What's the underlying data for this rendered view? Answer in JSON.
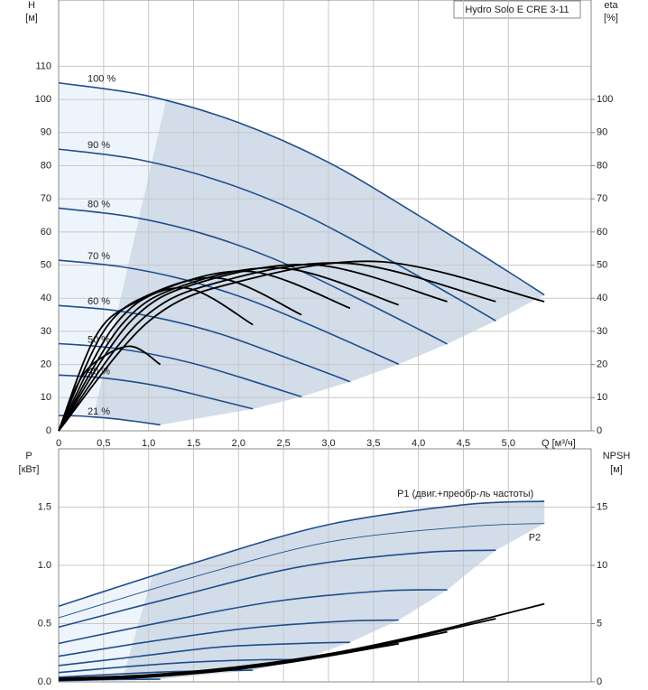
{
  "chart_data": [
    {
      "type": "line",
      "title": "Hydro Solo E CRE 3-11",
      "x_label": "Q [м³/ч]",
      "y_label": "H",
      "y_unit": "[м]",
      "y2_label": "eta",
      "y2_unit": "[%]",
      "xlim": [
        0,
        5.92
      ],
      "ylim": [
        0,
        130
      ],
      "y2lim": [
        0,
        130
      ],
      "xticks": [
        0,
        {
          "value": 0.5,
          "label": "0,5"
        },
        {
          "value": 1,
          "label": "1,0"
        },
        {
          "value": 1.5,
          "label": "1,5"
        },
        {
          "value": 2,
          "label": "2,0"
        },
        {
          "value": 2.5,
          "label": "2,5"
        },
        {
          "value": 3,
          "label": "3,0"
        },
        {
          "value": 3.5,
          "label": "3,5"
        },
        {
          "value": 4,
          "label": "4,0"
        },
        {
          "value": 4.5,
          "label": "4,5"
        },
        {
          "value": 5,
          "label": "5,0"
        }
      ],
      "yticks": [
        0,
        10,
        20,
        30,
        40,
        50,
        60,
        70,
        80,
        90,
        100,
        110
      ],
      "y2ticks": [
        0,
        10,
        20,
        30,
        40,
        50,
        60,
        70,
        80,
        90,
        100
      ],
      "grid": true,
      "series": [
        {
          "name": "100 %",
          "color": "#1f4e8c",
          "x": [
            0,
            1,
            2,
            3,
            4,
            5,
            5.4
          ],
          "values": [
            105,
            101,
            93,
            81,
            65,
            48,
            41
          ]
        },
        {
          "name": "90 %",
          "color": "#1f4e8c",
          "x": [
            0,
            0.9,
            1.8,
            2.7,
            3.6,
            4.5,
            4.86
          ],
          "values": [
            85,
            81.8,
            75.3,
            65.6,
            52.7,
            38.9,
            33.2
          ]
        },
        {
          "name": "80 %",
          "color": "#1f4e8c",
          "x": [
            0,
            0.8,
            1.6,
            2.4,
            3.2,
            4.0,
            4.32
          ],
          "values": [
            67.2,
            64.6,
            59.5,
            51.8,
            41.6,
            30.7,
            26.2
          ]
        },
        {
          "name": "70 %",
          "color": "#1f4e8c",
          "x": [
            0,
            0.7,
            1.4,
            2.1,
            2.8,
            3.5,
            3.78
          ],
          "values": [
            51.5,
            49.5,
            45.6,
            39.7,
            31.9,
            23.5,
            20.1
          ]
        },
        {
          "name": "60 %",
          "color": "#1f4e8c",
          "x": [
            0,
            0.6,
            1.2,
            1.8,
            2.4,
            3.0,
            3.24
          ],
          "values": [
            37.8,
            36.4,
            33.5,
            29.2,
            23.4,
            17.3,
            14.8
          ]
        },
        {
          "name": "50 %",
          "color": "#1f4e8c",
          "x": [
            0,
            0.5,
            1,
            1.5,
            2,
            2.5,
            2.7
          ],
          "values": [
            26.3,
            25.3,
            23.3,
            20.3,
            16.3,
            12,
            10.3
          ]
        },
        {
          "name": "40 %",
          "color": "#1f4e8c",
          "x": [
            0,
            0.4,
            0.8,
            1.2,
            1.6,
            2.0,
            2.16
          ],
          "values": [
            16.8,
            16.2,
            14.9,
            13,
            10.4,
            7.7,
            6.6
          ]
        },
        {
          "name": "21 %",
          "color": "#1f4e8c",
          "x": [
            0,
            0.21,
            0.42,
            0.63,
            0.84,
            1.05,
            1.13
          ],
          "values": [
            4.6,
            4.5,
            4.1,
            3.6,
            2.9,
            2.1,
            1.8
          ]
        },
        {
          "axis": "y2",
          "color": "#000000",
          "x": [
            0,
            1,
            2,
            3.6,
            5.4
          ],
          "values": [
            0,
            33,
            45,
            51,
            39
          ]
        },
        {
          "axis": "y2",
          "color": "#000000",
          "x": [
            0,
            0.9,
            1.8,
            3.24,
            4.86
          ],
          "values": [
            0,
            33,
            45,
            50.5,
            39
          ]
        },
        {
          "axis": "y2",
          "color": "#000000",
          "x": [
            0,
            0.8,
            1.6,
            2.88,
            4.32
          ],
          "values": [
            0,
            33,
            45,
            50,
            39
          ]
        },
        {
          "axis": "y2",
          "color": "#000000",
          "x": [
            0,
            0.7,
            1.4,
            2.52,
            3.78
          ],
          "values": [
            0,
            32,
            44,
            49,
            38
          ]
        },
        {
          "axis": "y2",
          "color": "#000000",
          "x": [
            0,
            0.6,
            1.2,
            2.16,
            3.24
          ],
          "values": [
            0,
            31,
            43,
            48,
            37
          ]
        },
        {
          "axis": "y2",
          "color": "#000000",
          "x": [
            0,
            0.5,
            1,
            1.8,
            2.7
          ],
          "values": [
            0,
            30,
            41,
            46,
            35
          ]
        },
        {
          "axis": "y2",
          "color": "#000000",
          "x": [
            0,
            0.4,
            0.8,
            1.44,
            2.16
          ],
          "values": [
            0,
            28,
            38,
            43,
            32
          ]
        },
        {
          "axis": "y2",
          "color": "#000000",
          "x": [
            0,
            0.21,
            0.42,
            0.8,
            1.13
          ],
          "values": [
            0,
            14,
            21,
            25.5,
            20
          ]
        }
      ]
    },
    {
      "type": "line",
      "y_label": "P",
      "y_unit": "[кВт]",
      "y2_label": "NPSH",
      "y2_unit": "[м]",
      "xlim": [
        0,
        5.92
      ],
      "ylim": [
        0,
        2.0
      ],
      "y2lim": [
        0,
        20
      ],
      "xticks": [
        0,
        0.5,
        1,
        1.5,
        2,
        2.5,
        3,
        3.5,
        4,
        4.5,
        5
      ],
      "yticks": [
        {
          "value": 0,
          "label": "0.0"
        },
        0.5,
        {
          "value": 1,
          "label": "1.0"
        },
        1.5
      ],
      "y2ticks": [
        0,
        5,
        10,
        15
      ],
      "grid": true,
      "series": [
        {
          "name": "P1 (двиг.+преобр-ль частоты)",
          "color": "#1f4e8c",
          "x": [
            0,
            1.5,
            3,
            4.5,
            5.4
          ],
          "values": [
            0.65,
            1.02,
            1.35,
            1.52,
            1.55
          ]
        },
        {
          "name": "P2",
          "color": "#1f4e8c",
          "x": [
            0,
            1.5,
            3,
            4.5,
            5.4
          ],
          "values": [
            0.55,
            0.9,
            1.2,
            1.33,
            1.36
          ]
        },
        {
          "color": "#1f4e8c",
          "x": [
            0,
            1.35,
            2.7,
            4.05,
            4.86
          ],
          "values": [
            0.47,
            0.74,
            0.99,
            1.11,
            1.13
          ]
        },
        {
          "color": "#1f4e8c",
          "x": [
            0,
            1.2,
            2.4,
            3.6,
            4.32
          ],
          "values": [
            0.33,
            0.52,
            0.69,
            0.78,
            0.79
          ]
        },
        {
          "color": "#1f4e8c",
          "x": [
            0,
            1.05,
            2.1,
            3.15,
            3.78
          ],
          "values": [
            0.22,
            0.35,
            0.46,
            0.52,
            0.53
          ]
        },
        {
          "color": "#1f4e8c",
          "x": [
            0,
            0.9,
            1.8,
            2.7,
            3.24
          ],
          "values": [
            0.14,
            0.22,
            0.3,
            0.33,
            0.34
          ]
        },
        {
          "color": "#1f4e8c",
          "x": [
            0,
            0.75,
            1.5,
            2.25,
            2.7
          ],
          "values": [
            0.08,
            0.13,
            0.17,
            0.19,
            0.19
          ]
        },
        {
          "color": "#1f4e8c",
          "x": [
            0,
            0.6,
            1.2,
            1.8,
            2.16
          ],
          "values": [
            0.04,
            0.065,
            0.086,
            0.097,
            0.1
          ]
        },
        {
          "color": "#1f4e8c",
          "x": [
            0,
            0.32,
            0.63,
            0.95,
            1.13
          ],
          "values": [
            0.01,
            0.015,
            0.02,
            0.022,
            0.023
          ]
        },
        {
          "axis": "y2",
          "color": "#000000",
          "x": [
            0,
            1,
            2,
            3,
            4,
            5.4
          ],
          "values": [
            0.3,
            0.6,
            1.3,
            2.4,
            4.0,
            6.7
          ]
        },
        {
          "axis": "y2",
          "color": "#000000",
          "x": [
            0,
            0.9,
            1.8,
            2.7,
            3.6,
            4.86
          ],
          "values": [
            0.24,
            0.49,
            1.05,
            1.94,
            3.24,
            5.43
          ]
        },
        {
          "axis": "y2",
          "color": "#000000",
          "x": [
            0,
            0.8,
            1.6,
            2.4,
            3.2,
            4.32
          ],
          "values": [
            0.19,
            0.38,
            0.83,
            1.54,
            2.56,
            4.29
          ]
        },
        {
          "axis": "y2",
          "color": "#000000",
          "x": [
            0,
            0.7,
            1.4,
            2.1,
            2.8,
            3.78
          ],
          "values": [
            0.15,
            0.29,
            0.64,
            1.18,
            1.96,
            3.28
          ]
        }
      ]
    }
  ]
}
